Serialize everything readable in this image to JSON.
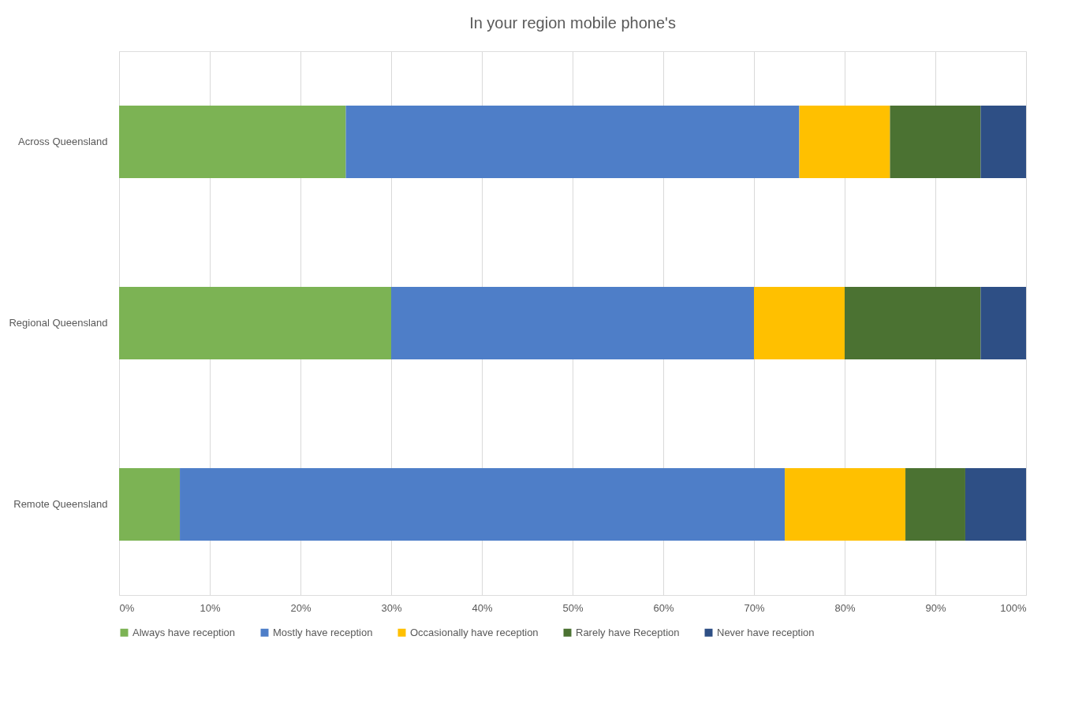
{
  "chart_data": {
    "type": "bar",
    "orientation": "horizontal",
    "stacked": true,
    "title": "In your region mobile phone's",
    "categories": [
      "Across Queensland",
      "Regional Queensland",
      "Remote Queensland"
    ],
    "series": [
      {
        "name": "Always have reception",
        "color": "#7cb354",
        "values": [
          25,
          30,
          6.7
        ]
      },
      {
        "name": "Mostly have reception",
        "color": "#4e7ec8",
        "values": [
          50,
          40,
          66.7
        ]
      },
      {
        "name": "Occasionally have reception",
        "color": "#ffc000",
        "values": [
          10,
          10,
          13.3
        ]
      },
      {
        "name": "Rarely have Reception",
        "color": "#4b7232",
        "values": [
          10,
          15,
          6.6
        ]
      },
      {
        "name": "Never have reception",
        "color": "#2e4f85",
        "values": [
          5,
          5,
          6.7
        ]
      }
    ],
    "xlim": [
      0,
      100
    ],
    "xticks": [
      {
        "value": 0,
        "label": "0%"
      },
      {
        "value": 10,
        "label": "10%"
      },
      {
        "value": 20,
        "label": "20%"
      },
      {
        "value": 30,
        "label": "30%"
      },
      {
        "value": 40,
        "label": "40%"
      },
      {
        "value": 50,
        "label": "50%"
      },
      {
        "value": 60,
        "label": "60%"
      },
      {
        "value": 70,
        "label": "70%"
      },
      {
        "value": 80,
        "label": "80%"
      },
      {
        "value": 90,
        "label": "90%"
      },
      {
        "value": 100,
        "label": "100%"
      }
    ],
    "grid": "x",
    "legend": "bottom"
  }
}
